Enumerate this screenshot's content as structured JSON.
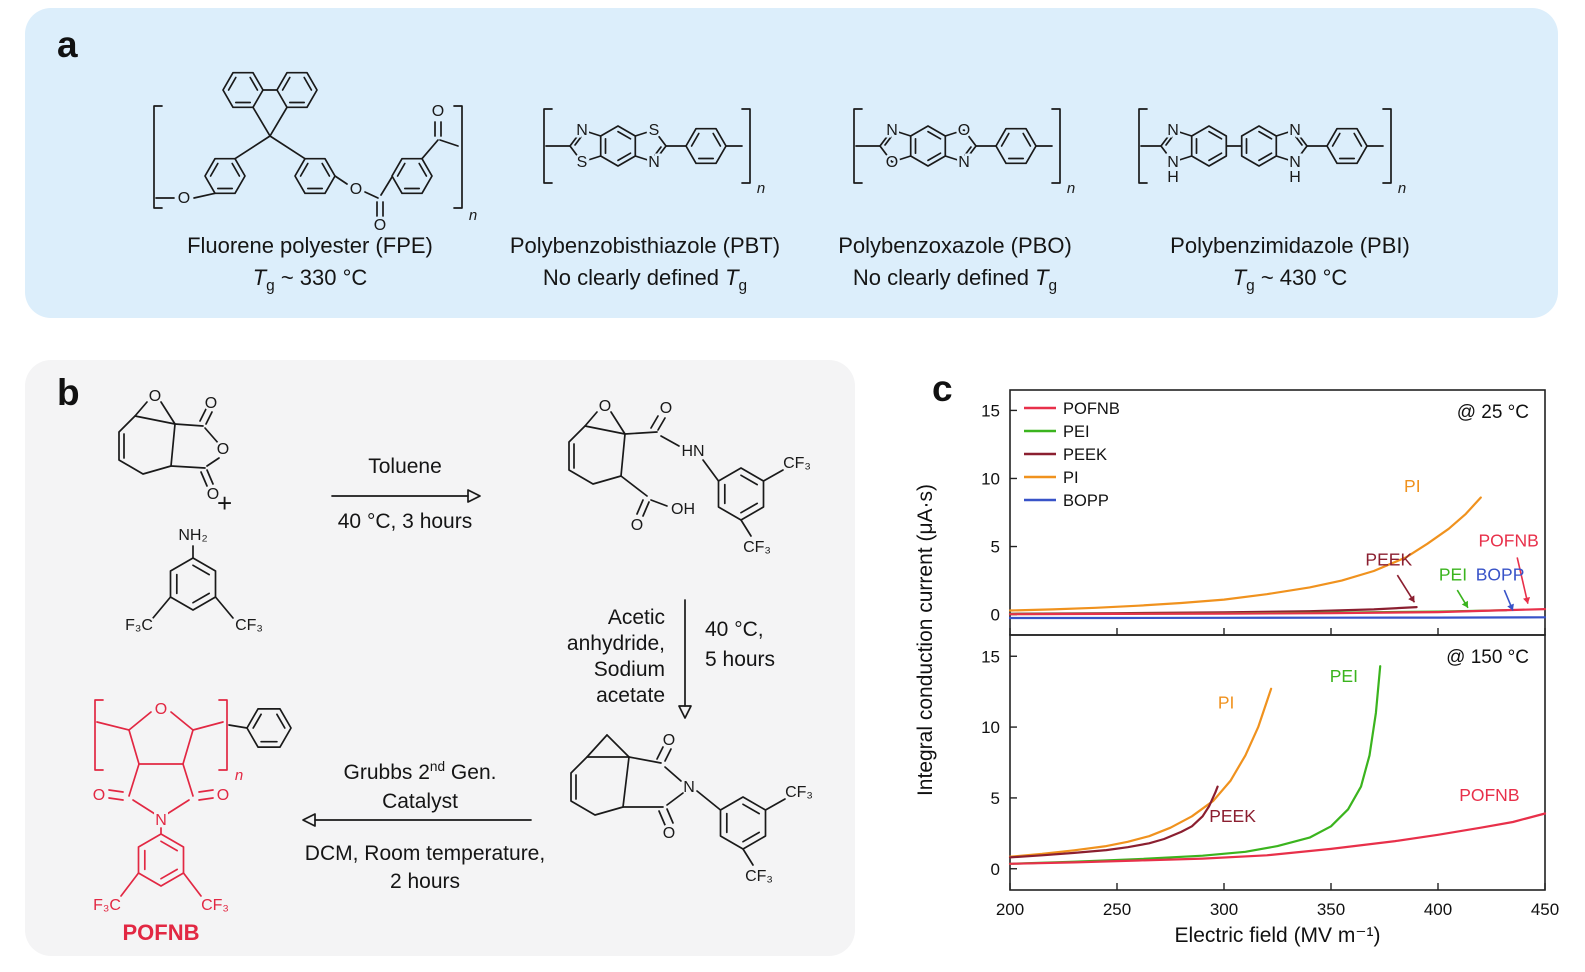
{
  "panels": {
    "a_label": "a",
    "b_label": "b",
    "c_label": "c"
  },
  "panel_a": {
    "t_sym": "T",
    "t_sub": "g",
    "polymers": [
      {
        "name": "Fluorene polyester (FPE)",
        "tg_pre": "",
        "tg_post": " ~ 330 °C"
      },
      {
        "name": "Polybenzobisthiazole (PBT)",
        "tg_pre": "No clearly defined ",
        "tg_post": ""
      },
      {
        "name": "Polybenzoxazole (PBO)",
        "tg_pre": "No clearly defined ",
        "tg_post": ""
      },
      {
        "name": "Polybenzimidazole (PBI)",
        "tg_pre": "",
        "tg_post": " ~ 430 °C"
      }
    ],
    "fpe_atoms": {
      "o1": "O",
      "o2": "O",
      "o3": "O",
      "o4": "O",
      "n": "n"
    },
    "pbt_atoms": {
      "n1": "N",
      "s1": "S",
      "s2": "S",
      "n2": "N",
      "n": "n"
    },
    "pbo_atoms": {
      "n1": "N",
      "o1": "O",
      "o2": "O",
      "n2": "N",
      "n": "n"
    },
    "pbi_atoms": {
      "u1_n": "N",
      "u1_nh": "N",
      "u1_h": "H",
      "u2_n": "N",
      "u2_nh": "N",
      "u2_h": "H",
      "n": "n"
    }
  },
  "panel_b": {
    "plus": "+",
    "step1_above": "Toluene",
    "step1_below": "40 °C, 3 hours",
    "step2_left": [
      "Acetic",
      "anhydride,",
      "Sodium",
      "acetate"
    ],
    "step2_right": [
      "40 °C,",
      "5 hours"
    ],
    "step3_above_pre": "Grubbs 2",
    "step3_above_sup": "nd",
    "step3_above_post": " Gen.",
    "step3_above2": "Catalyst",
    "step3_below1": "DCM, Room temperature,",
    "step3_below2": "2 hours",
    "product_label": "POFNB",
    "b1_atoms": {
      "bridge": "O",
      "top": "O",
      "ring": "O",
      "bottom": "O"
    },
    "b3_atoms": {
      "nh2": "NH₂",
      "f3c": "F₃C",
      "cf3": "CF₃"
    },
    "b5_atoms": {
      "bridge": "O",
      "amide_o": "O",
      "hn": "HN",
      "cf3a": "CF₃",
      "cf3b": "CF₃",
      "acid_o": "O",
      "oh": "OH"
    },
    "b7_atoms": {
      "top": "O",
      "n": "N",
      "bottom": "O",
      "cf3a": "CF₃",
      "cf3b": "CF₃"
    },
    "b9_atoms": {
      "ring_o": "O",
      "left_o": "O",
      "right_o": "O",
      "n": "N",
      "f3c": "F₃C",
      "cf3": "CF₃",
      "n_sub": "n"
    }
  },
  "chart_data": {
    "type": "line",
    "xlabel": "Electric field (MV m⁻¹)",
    "ylabel": "Integral conduction current (μA·s)",
    "xlim": [
      200,
      450
    ],
    "ylim": [
      -1.5,
      16.5
    ],
    "x_ticks": [
      200,
      250,
      300,
      350,
      400,
      450
    ],
    "y_ticks": [
      0,
      5,
      10,
      15
    ],
    "grid": false,
    "legend_position": "top-left",
    "legend": [
      "POFNB",
      "PEI",
      "PEEK",
      "PI",
      "BOPP"
    ],
    "colors": {
      "POFNB": "#e8304a",
      "PEI": "#3bb41e",
      "PEEK": "#8b1f30",
      "PI": "#f0921e",
      "BOPP": "#3853c8"
    },
    "charts": [
      {
        "label": "@ 25 °C",
        "series": [
          {
            "name": "PI",
            "points": [
              [
                200,
                0.3
              ],
              [
                220,
                0.38
              ],
              [
                240,
                0.5
              ],
              [
                260,
                0.65
              ],
              [
                280,
                0.85
              ],
              [
                300,
                1.1
              ],
              [
                320,
                1.5
              ],
              [
                340,
                2.0
              ],
              [
                355,
                2.5
              ],
              [
                370,
                3.2
              ],
              [
                385,
                4.2
              ],
              [
                395,
                5.2
              ],
              [
                405,
                6.3
              ],
              [
                413,
                7.4
              ],
              [
                420,
                8.6
              ]
            ]
          },
          {
            "name": "PEEK",
            "points": [
              [
                200,
                0.06
              ],
              [
                250,
                0.1
              ],
              [
                300,
                0.16
              ],
              [
                340,
                0.25
              ],
              [
                370,
                0.38
              ],
              [
                390,
                0.55
              ]
            ]
          },
          {
            "name": "PEI",
            "points": [
              [
                200,
                0.04
              ],
              [
                250,
                0.06
              ],
              [
                300,
                0.09
              ],
              [
                350,
                0.14
              ],
              [
                400,
                0.22
              ],
              [
                432,
                0.32
              ]
            ]
          },
          {
            "name": "POFNB",
            "points": [
              [
                200,
                0.03
              ],
              [
                250,
                0.05
              ],
              [
                300,
                0.07
              ],
              [
                350,
                0.1
              ],
              [
                400,
                0.18
              ],
              [
                450,
                0.4
              ]
            ]
          },
          {
            "name": "BOPP",
            "points": [
              [
                200,
                -0.25
              ],
              [
                250,
                -0.25
              ],
              [
                300,
                -0.24
              ],
              [
                350,
                -0.23
              ],
              [
                400,
                -0.22
              ],
              [
                450,
                -0.2
              ]
            ]
          }
        ],
        "annotations": [
          {
            "text": "PI",
            "x": 388,
            "y": 9.0
          },
          {
            "text": "POFNB",
            "x": 433,
            "y": 5.0,
            "arrow": [
              [
                437,
                4.2
              ],
              [
                442,
                0.8
              ]
            ]
          },
          {
            "text": "PEEK",
            "x": 377,
            "y": 3.6,
            "arrow": [
              [
                381,
                2.9
              ],
              [
                389,
                0.9
              ]
            ]
          },
          {
            "text": "PEI",
            "x": 407,
            "y": 2.5,
            "arrow": [
              [
                409,
                1.8
              ],
              [
                414,
                0.5
              ]
            ]
          },
          {
            "text": "BOPP",
            "x": 429,
            "y": 2.5,
            "arrow": [
              [
                431,
                1.8
              ],
              [
                435,
                0.3
              ]
            ]
          }
        ]
      },
      {
        "label": "@ 150 °C",
        "series": [
          {
            "name": "PI",
            "points": [
              [
                200,
                0.85
              ],
              [
                215,
                1.05
              ],
              [
                230,
                1.3
              ],
              [
                245,
                1.6
              ],
              [
                255,
                1.9
              ],
              [
                265,
                2.3
              ],
              [
                275,
                2.9
              ],
              [
                285,
                3.7
              ],
              [
                295,
                4.8
              ],
              [
                303,
                6.2
              ],
              [
                310,
                8.0
              ],
              [
                316,
                10.0
              ],
              [
                320,
                11.8
              ],
              [
                322,
                12.7
              ]
            ]
          },
          {
            "name": "PEEK",
            "points": [
              [
                200,
                0.8
              ],
              [
                215,
                0.95
              ],
              [
                230,
                1.12
              ],
              [
                245,
                1.32
              ],
              [
                255,
                1.52
              ],
              [
                265,
                1.8
              ],
              [
                272,
                2.1
              ],
              [
                280,
                2.6
              ],
              [
                285,
                3.0
              ],
              [
                290,
                3.7
              ],
              [
                293,
                4.4
              ],
              [
                296,
                5.4
              ],
              [
                297,
                5.8
              ]
            ]
          },
          {
            "name": "PEI",
            "points": [
              [
                200,
                0.35
              ],
              [
                230,
                0.5
              ],
              [
                260,
                0.68
              ],
              [
                290,
                0.92
              ],
              [
                310,
                1.2
              ],
              [
                325,
                1.6
              ],
              [
                340,
                2.2
              ],
              [
                350,
                3.0
              ],
              [
                358,
                4.2
              ],
              [
                364,
                5.8
              ],
              [
                368,
                8.0
              ],
              [
                371,
                11.0
              ],
              [
                373,
                14.3
              ]
            ]
          },
          {
            "name": "POFNB",
            "points": [
              [
                200,
                0.35
              ],
              [
                230,
                0.45
              ],
              [
                260,
                0.58
              ],
              [
                290,
                0.72
              ],
              [
                320,
                0.95
              ],
              [
                350,
                1.4
              ],
              [
                380,
                1.95
              ],
              [
                400,
                2.4
              ],
              [
                420,
                2.9
              ],
              [
                435,
                3.3
              ],
              [
                450,
                3.9
              ]
            ]
          }
        ],
        "annotations": [
          {
            "text": "PI",
            "x": 301,
            "y": 11.3
          },
          {
            "text": "PEI",
            "x": 356,
            "y": 13.2
          },
          {
            "text": "PEEK",
            "x": 304,
            "y": 3.3
          },
          {
            "text": "POFNB",
            "x": 424,
            "y": 4.8
          }
        ]
      }
    ]
  }
}
